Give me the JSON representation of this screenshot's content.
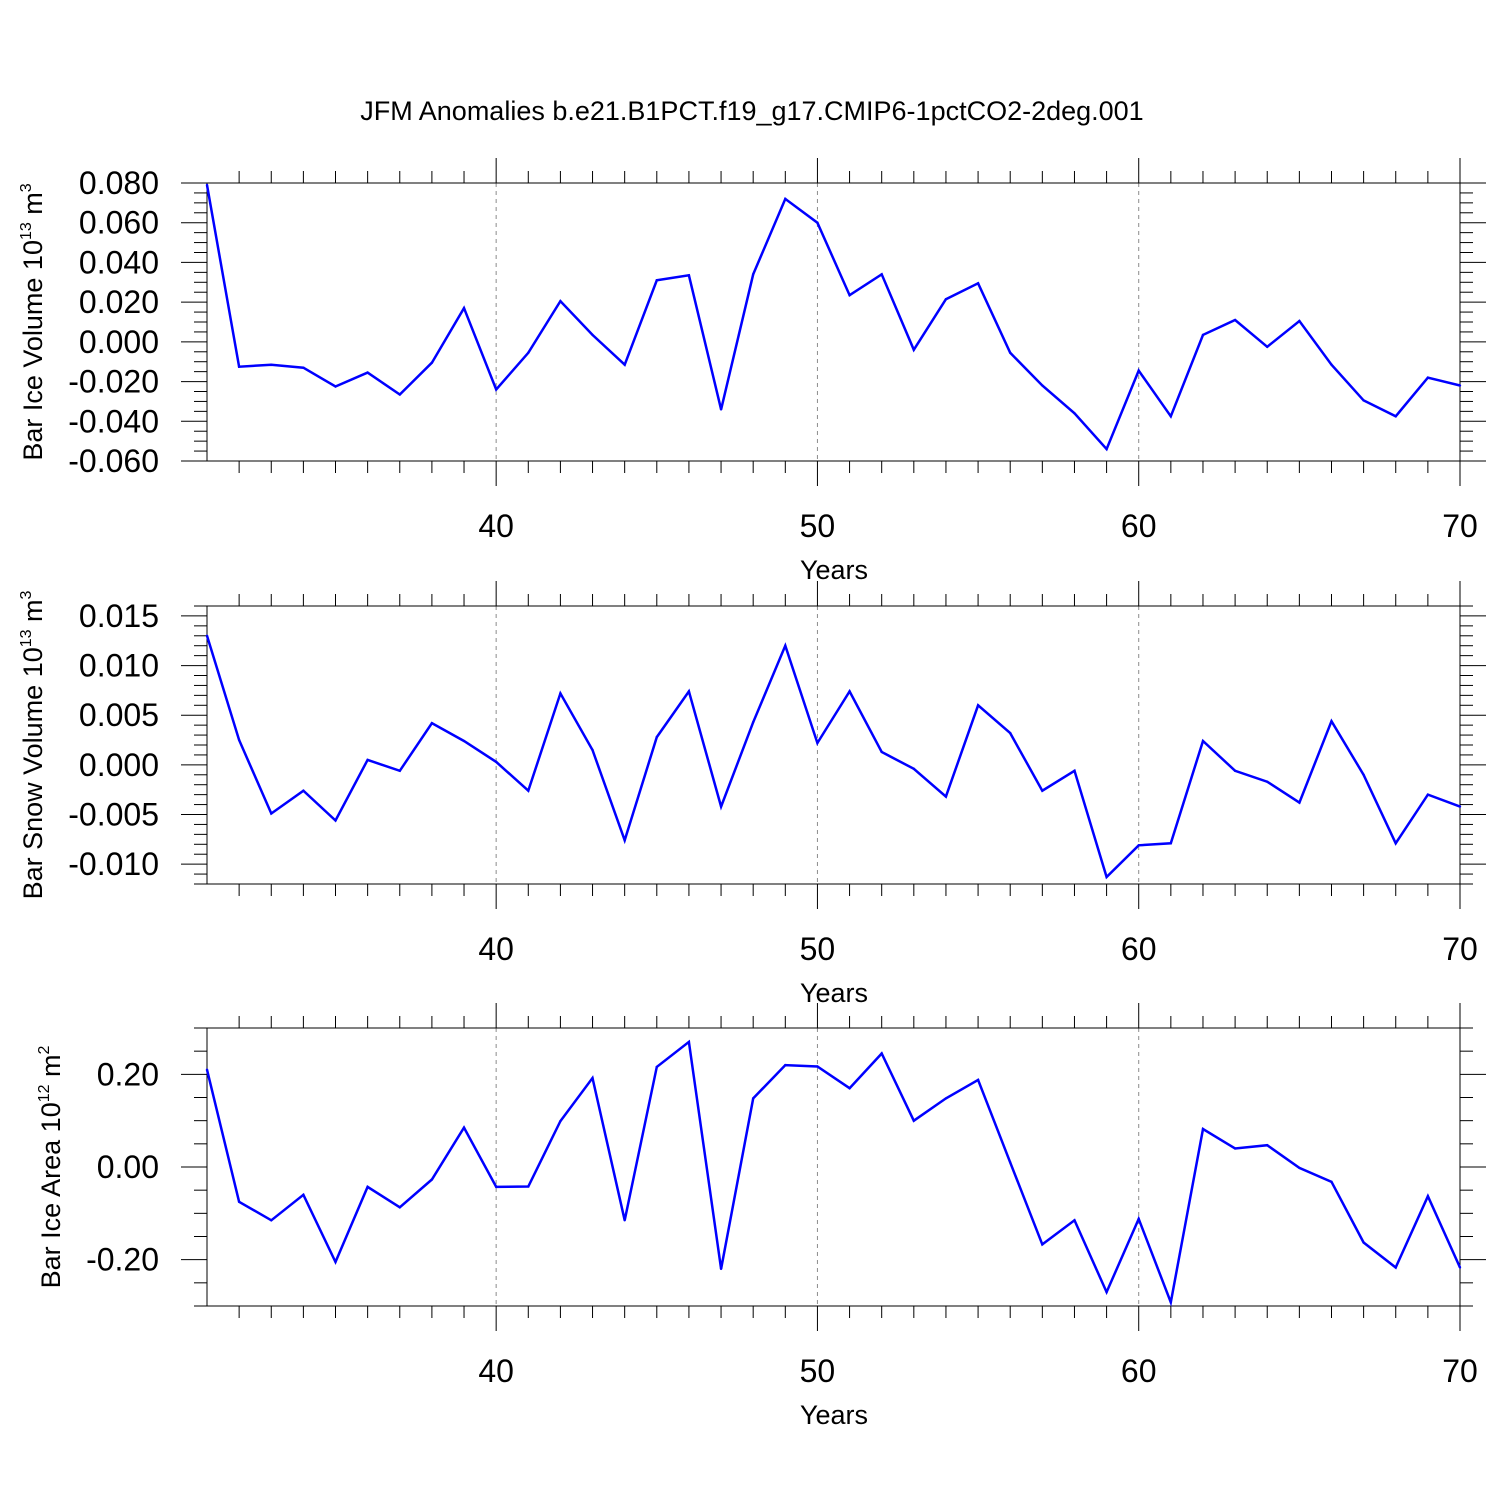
{
  "figure_title": "JFM Anomalies b.e21.B1PCT.f19_g17.CMIP6-1pctCO2-2deg.001",
  "colors": {
    "series": "#0000ff",
    "axes": "#000000",
    "gridline": "#8c8c8c"
  },
  "chart_data": [
    {
      "type": "line",
      "title": "",
      "ylabel_prefix": "Bar Ice Volume 10",
      "ylabel_exponent": "13",
      "ylabel_unit": "m",
      "ylabel_unit_exponent": "3",
      "xlabel": "Years",
      "xlim": [
        31,
        70
      ],
      "ylim": [
        -0.06,
        0.08
      ],
      "x_ticks": [
        40,
        50,
        60,
        70
      ],
      "x_tick_labels": [
        "40",
        "50",
        "60",
        "70"
      ],
      "y_ticks": [
        -0.06,
        -0.04,
        -0.02,
        0,
        0.02,
        0.04,
        0.06,
        0.08
      ],
      "y_tick_labels": [
        "-0.060",
        "-0.040",
        "-0.020",
        "0.000",
        "0.020",
        "0.040",
        "0.060",
        "0.080"
      ],
      "y_minor_step": 0.005,
      "gridlines_x": [
        40,
        50,
        60
      ],
      "x": [
        31,
        32,
        33,
        34,
        35,
        36,
        37,
        38,
        39,
        40,
        41,
        42,
        43,
        44,
        45,
        46,
        47,
        48,
        49,
        50,
        51,
        52,
        53,
        54,
        55,
        56,
        57,
        58,
        59,
        60,
        61,
        62,
        63,
        64,
        65,
        66,
        67,
        68,
        69,
        70
      ],
      "series": [
        {
          "name": "Bar Ice Volume",
          "values": [
            0.079,
            -0.0125,
            -0.0115,
            -0.013,
            -0.0225,
            -0.0155,
            -0.0265,
            -0.0105,
            0.017,
            -0.024,
            -0.0055,
            0.0205,
            0.0035,
            -0.0115,
            0.031,
            0.0335,
            -0.034,
            0.034,
            0.072,
            0.06,
            0.0235,
            0.034,
            -0.004,
            0.0215,
            0.0295,
            -0.0055,
            -0.022,
            -0.036,
            -0.054,
            -0.0145,
            -0.0375,
            0.0035,
            0.011,
            -0.0025,
            0.0105,
            -0.0115,
            -0.0295,
            -0.0375,
            -0.018,
            -0.022
          ]
        }
      ]
    },
    {
      "type": "line",
      "title": "",
      "ylabel_prefix": "Bar Snow Volume 10",
      "ylabel_exponent": "13",
      "ylabel_unit": "m",
      "ylabel_unit_exponent": "3",
      "xlabel": "Years",
      "xlim": [
        31,
        70
      ],
      "ylim": [
        -0.012,
        0.016
      ],
      "x_ticks": [
        40,
        50,
        60,
        70
      ],
      "x_tick_labels": [
        "40",
        "50",
        "60",
        "70"
      ],
      "y_ticks": [
        -0.01,
        -0.005,
        0,
        0.005,
        0.01,
        0.015
      ],
      "y_tick_labels": [
        "-0.010",
        "-0.005",
        "0.000",
        "0.005",
        "0.010",
        "0.015"
      ],
      "y_minor_step": 0.001,
      "gridlines_x": [
        40,
        50,
        60
      ],
      "x": [
        31,
        32,
        33,
        34,
        35,
        36,
        37,
        38,
        39,
        40,
        41,
        42,
        43,
        44,
        45,
        46,
        47,
        48,
        49,
        50,
        51,
        52,
        53,
        54,
        55,
        56,
        57,
        58,
        59,
        60,
        61,
        62,
        63,
        64,
        65,
        66,
        67,
        68,
        69,
        70
      ],
      "series": [
        {
          "name": "Bar Snow Volume",
          "values": [
            0.013,
            0.0025,
            -0.0049,
            -0.0026,
            -0.0056,
            0.0005,
            -0.0006,
            0.0042,
            0.0024,
            0.0003,
            -0.0026,
            0.0072,
            0.0015,
            -0.0076,
            0.0028,
            0.0074,
            -0.0042,
            0.0043,
            0.012,
            0.0022,
            0.0074,
            0.0013,
            -0.0004,
            -0.0032,
            0.006,
            0.0032,
            -0.0026,
            -0.0006,
            -0.0113,
            -0.0081,
            -0.0079,
            0.0024,
            -0.0006,
            -0.0017,
            -0.0038,
            0.0044,
            -0.001,
            -0.0079,
            -0.003,
            -0.0042
          ]
        }
      ]
    },
    {
      "type": "line",
      "title": "",
      "ylabel_prefix": "Bar Ice Area 10",
      "ylabel_exponent": "12",
      "ylabel_unit": "m",
      "ylabel_unit_exponent": "2",
      "xlabel": "Years",
      "xlim": [
        31,
        70
      ],
      "ylim": [
        -0.3,
        0.3
      ],
      "x_ticks": [
        40,
        50,
        60,
        70
      ],
      "x_tick_labels": [
        "40",
        "50",
        "60",
        "70"
      ],
      "y_ticks": [
        -0.2,
        0,
        0.2
      ],
      "y_tick_labels": [
        "-0.20",
        "0.00",
        "0.20"
      ],
      "y_minor_step": 0.05,
      "gridlines_x": [
        40,
        50,
        60
      ],
      "x": [
        31,
        32,
        33,
        34,
        35,
        36,
        37,
        38,
        39,
        40,
        41,
        42,
        43,
        44,
        45,
        46,
        47,
        48,
        49,
        50,
        51,
        52,
        53,
        54,
        55,
        56,
        57,
        58,
        59,
        60,
        61,
        62,
        63,
        64,
        65,
        66,
        67,
        68,
        69,
        70
      ],
      "series": [
        {
          "name": "Bar Ice Area",
          "values": [
            0.21,
            -0.075,
            -0.115,
            -0.06,
            -0.205,
            -0.043,
            -0.087,
            -0.027,
            0.085,
            -0.043,
            -0.042,
            0.099,
            0.192,
            -0.115,
            0.216,
            0.27,
            -0.22,
            0.148,
            0.22,
            0.217,
            0.17,
            0.245,
            0.1,
            0.148,
            0.188,
            0.01,
            -0.167,
            -0.115,
            -0.27,
            -0.112,
            -0.292,
            0.082,
            0.04,
            0.047,
            -0.002,
            -0.032,
            -0.163,
            -0.217,
            -0.063,
            -0.217
          ]
        }
      ]
    }
  ]
}
